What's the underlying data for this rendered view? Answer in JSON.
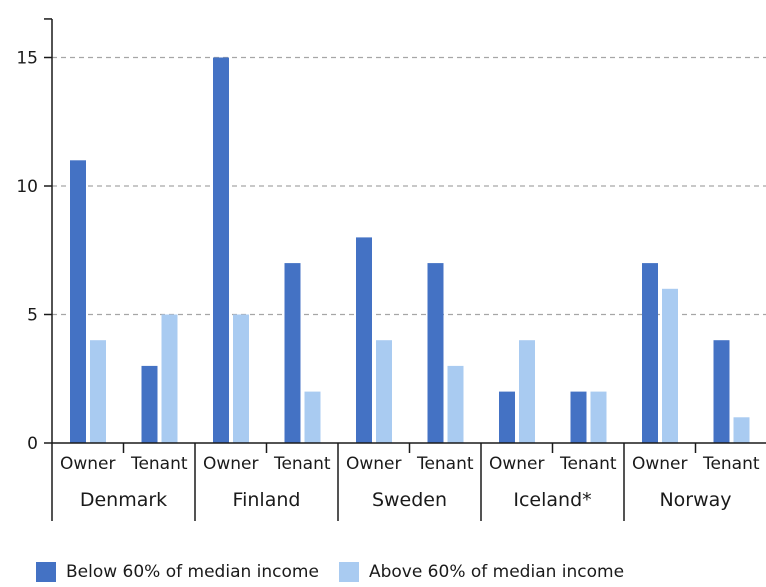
{
  "chart_data": {
    "type": "bar",
    "title": "",
    "xlabel": "",
    "ylabel": "",
    "ylim": [
      0,
      16.5
    ],
    "yticks": [
      0,
      5,
      10,
      15
    ],
    "grid": "horizontal dashed",
    "legend_position": "bottom",
    "groups": [
      {
        "name": "Denmark",
        "subcategories": [
          "Owner",
          "Tenant"
        ]
      },
      {
        "name": "Finland",
        "subcategories": [
          "Owner",
          "Tenant"
        ]
      },
      {
        "name": "Sweden",
        "subcategories": [
          "Owner",
          "Tenant"
        ]
      },
      {
        "name": "Iceland*",
        "subcategories": [
          "Owner",
          "Tenant"
        ]
      },
      {
        "name": "Norway",
        "subcategories": [
          "Owner",
          "Tenant"
        ]
      }
    ],
    "categories": [
      "Denmark Owner",
      "Denmark Tenant",
      "Finland Owner",
      "Finland Tenant",
      "Sweden Owner",
      "Sweden Tenant",
      "Iceland* Owner",
      "Iceland* Tenant",
      "Norway Owner",
      "Norway Tenant"
    ],
    "series": [
      {
        "name": "Below 60% of median income",
        "color": "#4472c4",
        "values": [
          11,
          3,
          15,
          7,
          8,
          7,
          2,
          2,
          7,
          4
        ]
      },
      {
        "name": "Above 60% of median income",
        "color": "#a9cbf1",
        "values": [
          4,
          5,
          5,
          2,
          4,
          3,
          4,
          2,
          6,
          1
        ]
      }
    ]
  },
  "colors": {
    "axis": "#1a1a1a",
    "grid": "#a6a6a6",
    "dark_bar": "#4472c4",
    "light_bar": "#a9cbf1"
  }
}
